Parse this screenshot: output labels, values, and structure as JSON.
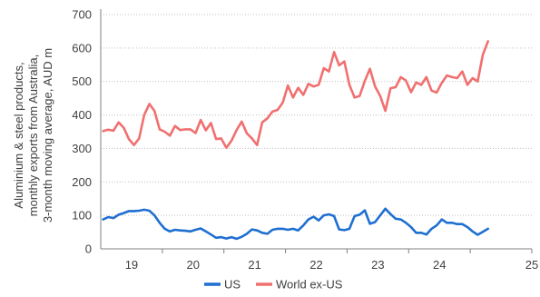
{
  "chart_data": {
    "type": "line",
    "ylabel_lines": [
      "Aluminium & steel products,",
      "monthly exports from Australia,",
      "3-month moving average, AUD m"
    ],
    "xlim": [
      2018.0,
      2025.0
    ],
    "ylim": [
      0,
      700
    ],
    "y_ticks": [
      0,
      100,
      200,
      300,
      400,
      500,
      600,
      700
    ],
    "x_ticks": [
      {
        "value": 2019.0,
        "label": "19"
      },
      {
        "value": 2020.0,
        "label": "20"
      },
      {
        "value": 2021.0,
        "label": "21"
      },
      {
        "value": 2022.0,
        "label": "22"
      },
      {
        "value": 2023.0,
        "label": "23"
      },
      {
        "value": 2024.0,
        "label": "24"
      },
      {
        "value": 2025.0,
        "label": "25"
      }
    ],
    "grid": "horizontal",
    "legend_position": "bottom",
    "x_start": 2018.04,
    "x_step": 0.0833,
    "series": [
      {
        "name": "US",
        "color": "#1f6fd1",
        "values": [
          88,
          95,
          92,
          102,
          107,
          113,
          113,
          114,
          117,
          114,
          100,
          78,
          60,
          52,
          57,
          55,
          54,
          52,
          57,
          61,
          52,
          43,
          33,
          35,
          31,
          35,
          30,
          36,
          45,
          58,
          55,
          48,
          45,
          57,
          60,
          60,
          57,
          60,
          55,
          70,
          88,
          96,
          85,
          100,
          103,
          98,
          58,
          56,
          60,
          98,
          102,
          115,
          75,
          80,
          100,
          120,
          104,
          90,
          88,
          78,
          65,
          48,
          48,
          43,
          60,
          70,
          88,
          78,
          78,
          74,
          74,
          65,
          52,
          42,
          51,
          60
        ]
      },
      {
        "name": "World ex-US",
        "color": "#f07070",
        "values": [
          352,
          356,
          353,
          378,
          362,
          328,
          310,
          330,
          400,
          433,
          412,
          357,
          350,
          338,
          367,
          355,
          357,
          357,
          346,
          385,
          354,
          376,
          328,
          330,
          302,
          323,
          355,
          380,
          345,
          330,
          310,
          378,
          390,
          410,
          415,
          437,
          488,
          452,
          481,
          460,
          493,
          485,
          490,
          540,
          530,
          588,
          548,
          560,
          490,
          452,
          457,
          502,
          538,
          485,
          457,
          412,
          480,
          483,
          513,
          503,
          468,
          497,
          490,
          513,
          473,
          467,
          496,
          518,
          513,
          510,
          530,
          490,
          510,
          500,
          580,
          620
        ]
      }
    ]
  }
}
